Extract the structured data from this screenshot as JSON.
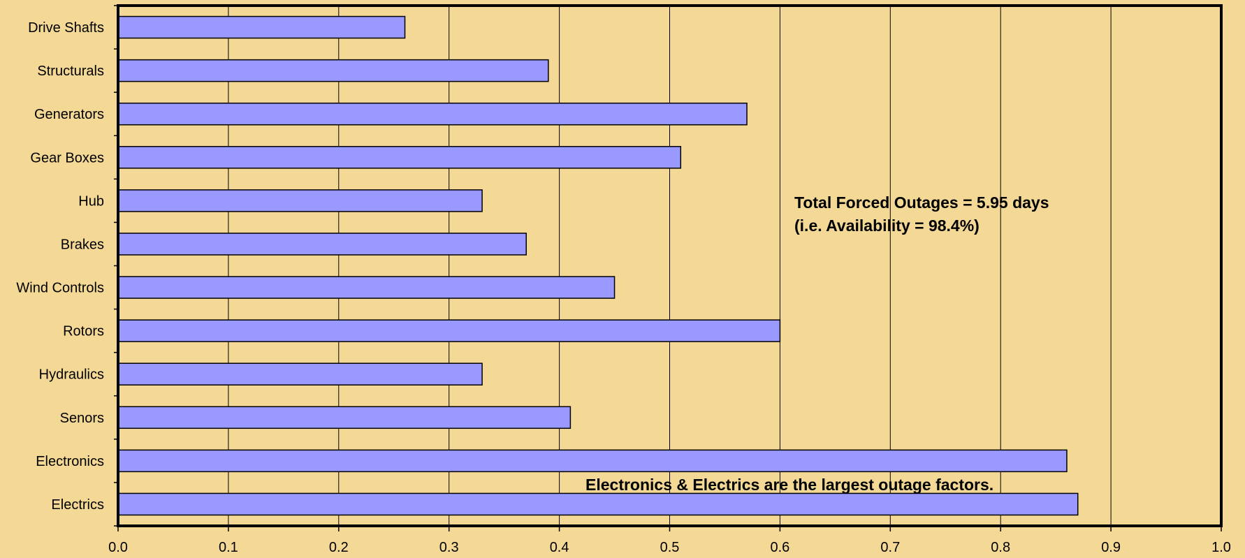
{
  "chart_data": {
    "type": "bar",
    "orientation": "horizontal",
    "categories": [
      "Drive Shafts",
      "Structurals",
      "Generators",
      "Gear Boxes",
      "Hub",
      "Brakes",
      "Wind Controls",
      "Rotors",
      "Hydraulics",
      "Senors",
      "Electronics",
      "Electrics"
    ],
    "values": [
      0.26,
      0.39,
      0.57,
      0.51,
      0.33,
      0.37,
      0.45,
      0.6,
      0.33,
      0.41,
      0.86,
      0.87
    ],
    "xlim": [
      0,
      1.0
    ],
    "x_ticks": [
      "0.0",
      "0.1",
      "0.2",
      "0.3",
      "0.4",
      "0.5",
      "0.6",
      "0.7",
      "0.8",
      "0.9",
      "1.0"
    ],
    "grid": "vertical",
    "title": "",
    "xlabel": "",
    "ylabel": "",
    "annotations": [
      "Total Forced Outages = 5.95 days",
      "(i.e. Availability = 98.4%)",
      "Electronics & Electrics are the largest outage factors."
    ],
    "colors": {
      "background": "#F4D896",
      "bar": "#9999FF",
      "bar_outline": "#000000",
      "grid": "#000000"
    }
  }
}
